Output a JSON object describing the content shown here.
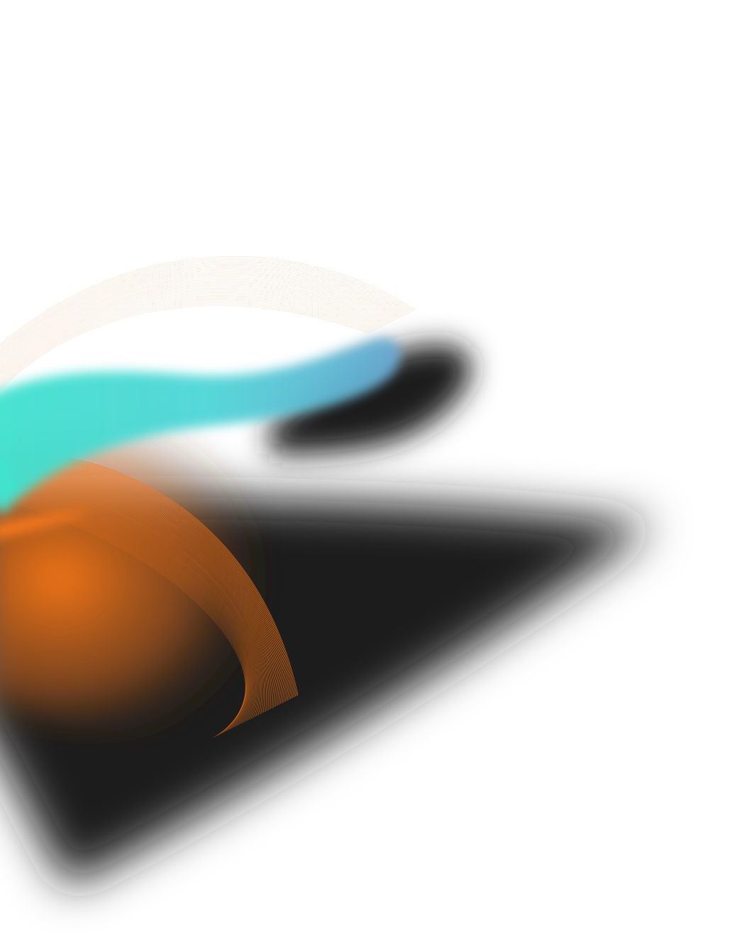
{
  "artwork": {
    "background_color": "#ffffff",
    "colors": {
      "dark_shape": "#1b1a1a",
      "cyan": "#3fe3cf",
      "sky_blue": "#5ab8d6",
      "orange": "#ff7a1a",
      "peach_lines": "#f2c7a3"
    }
  }
}
